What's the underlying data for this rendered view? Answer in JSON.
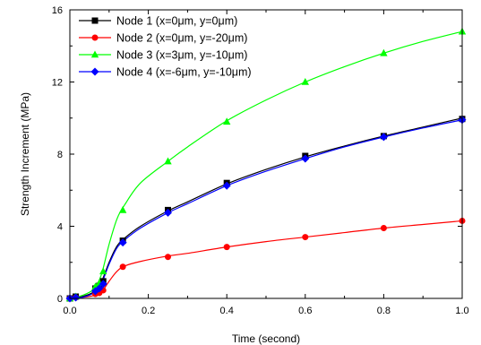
{
  "chart_data": {
    "type": "line",
    "xlabel": "Time (second)",
    "ylabel": "Strength Increment (MPa)",
    "xlim": [
      0.0,
      1.0
    ],
    "ylim": [
      0,
      16
    ],
    "xticks": [
      "0.0",
      "0.2",
      "0.4",
      "0.6",
      "0.8",
      "1.0"
    ],
    "yticks": [
      "0",
      "4",
      "8",
      "12",
      "16"
    ],
    "grid": false,
    "legend_position": "top-left",
    "series": [
      {
        "name": "Node 1 (x=0μm, y=0μm)",
        "color": "#000000",
        "marker": "square",
        "points": [
          [
            0.0,
            0.0
          ],
          [
            0.015,
            0.1
          ],
          [
            0.065,
            0.55
          ],
          [
            0.075,
            0.7
          ],
          [
            0.085,
            0.95
          ],
          [
            0.135,
            3.2
          ],
          [
            0.25,
            4.9
          ],
          [
            0.4,
            6.4
          ],
          [
            0.6,
            7.9
          ],
          [
            0.8,
            9.0
          ],
          [
            1.0,
            9.95
          ]
        ],
        "curve": [
          [
            0.0,
            0.0
          ],
          [
            0.03,
            0.1
          ],
          [
            0.06,
            0.35
          ],
          [
            0.08,
            0.9
          ],
          [
            0.1,
            2.0
          ],
          [
            0.12,
            2.9
          ],
          [
            0.14,
            3.35
          ],
          [
            0.18,
            4.0
          ],
          [
            0.25,
            4.85
          ],
          [
            0.3,
            5.35
          ],
          [
            0.4,
            6.35
          ],
          [
            0.5,
            7.15
          ],
          [
            0.6,
            7.85
          ],
          [
            0.7,
            8.45
          ],
          [
            0.8,
            9.0
          ],
          [
            0.9,
            9.5
          ],
          [
            1.0,
            10.0
          ]
        ]
      },
      {
        "name": "Node 2 (x=0μm, y=-20μm)",
        "color": "#ff0000",
        "marker": "circle",
        "points": [
          [
            0.0,
            0.0
          ],
          [
            0.015,
            0.05
          ],
          [
            0.065,
            0.25
          ],
          [
            0.075,
            0.3
          ],
          [
            0.085,
            0.45
          ],
          [
            0.135,
            1.75
          ],
          [
            0.25,
            2.3
          ],
          [
            0.4,
            2.85
          ],
          [
            0.6,
            3.4
          ],
          [
            0.8,
            3.9
          ],
          [
            1.0,
            4.3
          ]
        ],
        "curve": [
          [
            0.0,
            0.0
          ],
          [
            0.03,
            0.05
          ],
          [
            0.06,
            0.15
          ],
          [
            0.08,
            0.35
          ],
          [
            0.1,
            0.95
          ],
          [
            0.12,
            1.5
          ],
          [
            0.14,
            1.8
          ],
          [
            0.18,
            2.05
          ],
          [
            0.25,
            2.35
          ],
          [
            0.3,
            2.5
          ],
          [
            0.4,
            2.85
          ],
          [
            0.5,
            3.15
          ],
          [
            0.6,
            3.4
          ],
          [
            0.7,
            3.65
          ],
          [
            0.8,
            3.9
          ],
          [
            0.9,
            4.1
          ],
          [
            1.0,
            4.3
          ]
        ]
      },
      {
        "name": "Node 3 (x=3μm, y=-10μm)",
        "color": "#00ff00",
        "marker": "triangle",
        "points": [
          [
            0.0,
            0.0
          ],
          [
            0.015,
            0.1
          ],
          [
            0.065,
            0.65
          ],
          [
            0.075,
            0.85
          ],
          [
            0.085,
            1.5
          ],
          [
            0.135,
            4.9
          ],
          [
            0.25,
            7.6
          ],
          [
            0.4,
            9.8
          ],
          [
            0.6,
            12.0
          ],
          [
            0.8,
            13.6
          ],
          [
            1.0,
            14.8
          ]
        ],
        "curve": [
          [
            0.0,
            0.0
          ],
          [
            0.03,
            0.15
          ],
          [
            0.06,
            0.5
          ],
          [
            0.08,
            1.3
          ],
          [
            0.1,
            3.0
          ],
          [
            0.12,
            4.4
          ],
          [
            0.14,
            5.2
          ],
          [
            0.18,
            6.4
          ],
          [
            0.25,
            7.6
          ],
          [
            0.3,
            8.4
          ],
          [
            0.4,
            9.85
          ],
          [
            0.5,
            11.0
          ],
          [
            0.6,
            12.0
          ],
          [
            0.7,
            12.85
          ],
          [
            0.8,
            13.6
          ],
          [
            0.9,
            14.25
          ],
          [
            1.0,
            14.8
          ]
        ]
      },
      {
        "name": "Node 4 (x=-6μm, y=-10μm)",
        "color": "#0000ff",
        "marker": "diamond",
        "points": [
          [
            0.0,
            0.0
          ],
          [
            0.015,
            0.05
          ],
          [
            0.065,
            0.4
          ],
          [
            0.075,
            0.55
          ],
          [
            0.085,
            0.8
          ],
          [
            0.135,
            3.1
          ],
          [
            0.25,
            4.75
          ],
          [
            0.4,
            6.25
          ],
          [
            0.6,
            7.75
          ],
          [
            0.8,
            8.95
          ],
          [
            1.0,
            9.9
          ]
        ],
        "curve": [
          [
            0.0,
            0.0
          ],
          [
            0.03,
            0.05
          ],
          [
            0.06,
            0.3
          ],
          [
            0.08,
            0.8
          ],
          [
            0.1,
            1.9
          ],
          [
            0.12,
            2.8
          ],
          [
            0.14,
            3.25
          ],
          [
            0.18,
            3.9
          ],
          [
            0.25,
            4.75
          ],
          [
            0.3,
            5.25
          ],
          [
            0.4,
            6.25
          ],
          [
            0.5,
            7.05
          ],
          [
            0.6,
            7.75
          ],
          [
            0.7,
            8.4
          ],
          [
            0.8,
            8.95
          ],
          [
            0.9,
            9.45
          ],
          [
            1.0,
            9.9
          ]
        ]
      }
    ]
  }
}
